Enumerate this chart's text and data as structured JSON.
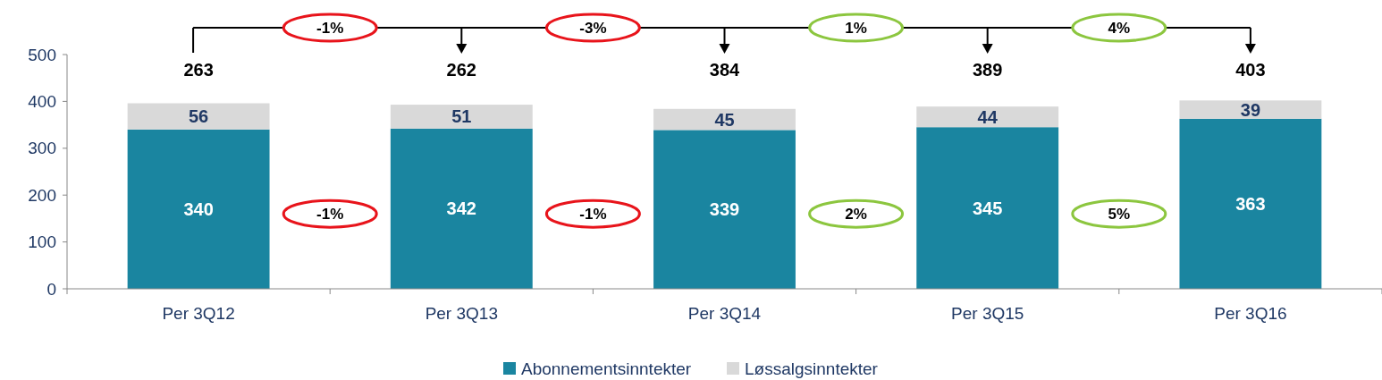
{
  "chart_data": {
    "type": "bar",
    "stacked": true,
    "categories": [
      "Per 3Q12",
      "Per 3Q13",
      "Per 3Q14",
      "Per 3Q15",
      "Per 3Q16"
    ],
    "series": [
      {
        "name": "Abonnementsinntekter",
        "color": "#1a85a0",
        "values": [
          340,
          342,
          339,
          345,
          363
        ]
      },
      {
        "name": "Løssalgsinntekter",
        "color": "#d9d9d9",
        "values": [
          56,
          51,
          45,
          44,
          39
        ]
      }
    ],
    "ylim": [
      0,
      500
    ],
    "yticks": [
      0,
      100,
      200,
      300,
      400,
      500
    ],
    "data_labels": true,
    "annotations": [
      "-1%",
      "-3%",
      "1%",
      "4%",
      "-1%",
      "-1%",
      "2%",
      "5%",
      "263",
      "262",
      "384",
      "389",
      "403"
    ],
    "legend": "bottom",
    "grid": false
  }
}
